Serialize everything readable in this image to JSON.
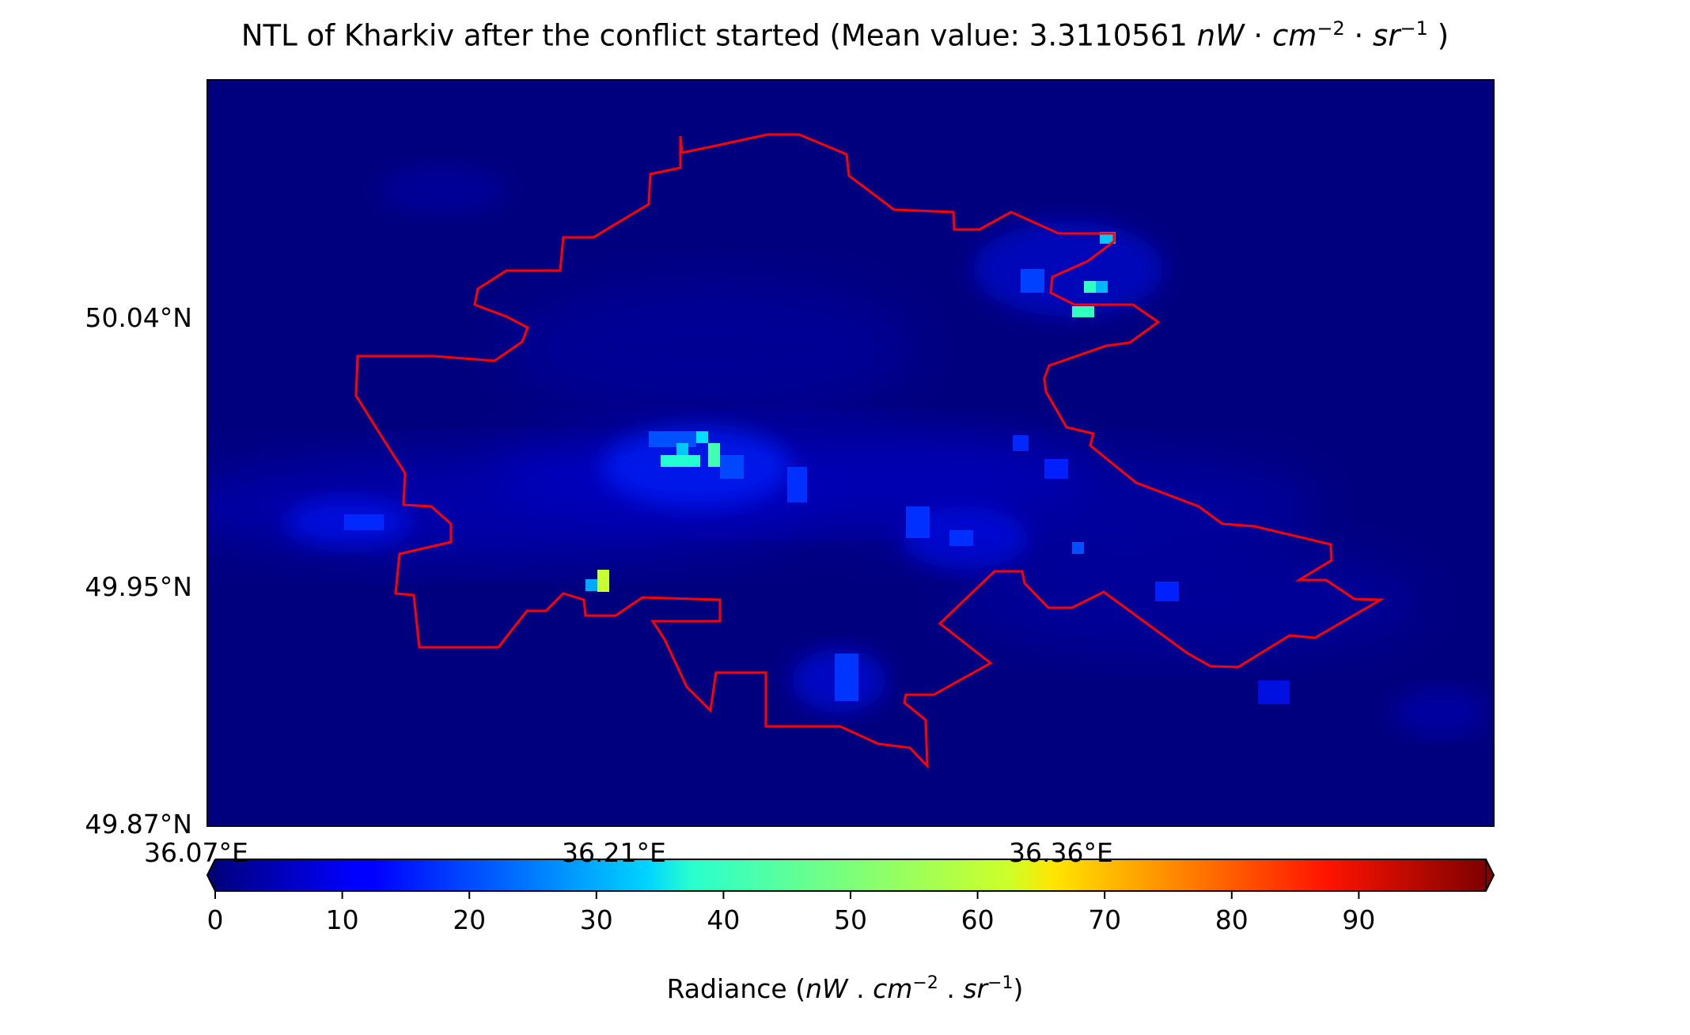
{
  "title": {
    "prefix": "NTL of Kharkiv after the conflict started (Mean value: 3.3110561 ",
    "unit_nw": "nW",
    "dot1": " · ",
    "unit_cm": "cm",
    "exp_cm": "−2",
    "dot2": " · ",
    "unit_sr": "sr",
    "exp_sr": "−1",
    "suffix": " )"
  },
  "map": {
    "lat_labels": [
      "50.04°N",
      "49.95°N",
      "49.87°N"
    ],
    "lon_labels": [
      "36.07°E",
      "36.21°E",
      "36.36°E"
    ],
    "boundary_color": "#ff0000",
    "background_color": "#00007f"
  },
  "colorbar": {
    "ticks": [
      "0",
      "10",
      "20",
      "30",
      "40",
      "50",
      "60",
      "70",
      "80",
      "90"
    ],
    "range": [
      0,
      100
    ],
    "colormap": "jet",
    "extend": "both",
    "label_prefix": "Radiance (",
    "label_nw": "nW",
    "label_sep1": " . ",
    "label_cm": "cm",
    "label_exp_cm": "−2",
    "label_sep2": " . ",
    "label_sr": "sr",
    "label_exp_sr": "−1",
    "label_suffix": ")"
  }
}
